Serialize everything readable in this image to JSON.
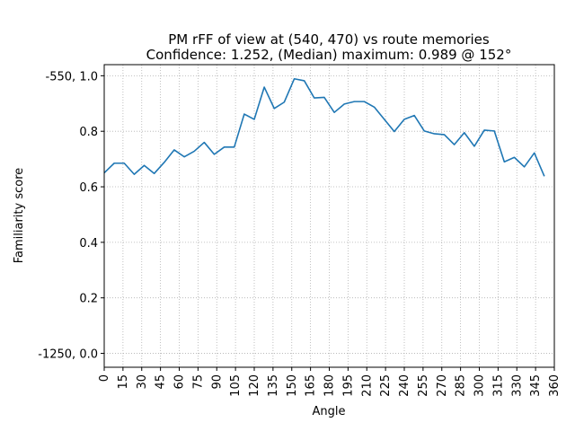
{
  "chart_data": {
    "type": "line",
    "title": "PM rFF of view at (540, 470) vs route memories",
    "subtitle": "Confidence: 1.252, (Median) maximum: 0.989 @ 152°",
    "xlabel": "Angle",
    "ylabel": "Familiarity score",
    "xlim": [
      0,
      360
    ],
    "ylim": [
      -0.05,
      1.04
    ],
    "grid": true,
    "x_ticks": [
      0,
      15,
      30,
      45,
      60,
      75,
      90,
      105,
      120,
      135,
      150,
      165,
      180,
      195,
      210,
      225,
      240,
      255,
      270,
      285,
      300,
      315,
      330,
      345,
      360
    ],
    "y_ticks": [
      {
        "value": 0.0,
        "label": "-1250, 0.0"
      },
      {
        "value": 0.2,
        "label": "0.2"
      },
      {
        "value": 0.4,
        "label": "0.4"
      },
      {
        "value": 0.6,
        "label": "0.6"
      },
      {
        "value": 0.8,
        "label": "0.8"
      },
      {
        "value": 1.0,
        "label": "-550, 1.0"
      }
    ],
    "line_color": "#1f77b4",
    "series": [
      {
        "x": [
          0,
          8,
          16,
          24,
          32,
          40,
          48,
          56,
          64,
          72,
          80,
          88,
          96,
          104,
          112,
          120,
          128,
          136,
          144,
          152,
          160,
          168,
          176,
          184,
          192,
          200,
          208,
          216,
          224,
          232,
          240,
          248,
          256,
          264,
          272,
          280,
          288,
          296,
          304,
          312,
          320,
          328,
          336,
          344,
          352
        ],
        "y": [
          0.65,
          0.685,
          0.685,
          0.645,
          0.677,
          0.648,
          0.688,
          0.733,
          0.708,
          0.728,
          0.76,
          0.717,
          0.743,
          0.743,
          0.862,
          0.843,
          0.959,
          0.882,
          0.905,
          0.989,
          0.982,
          0.92,
          0.922,
          0.868,
          0.898,
          0.907,
          0.907,
          0.887,
          0.843,
          0.799,
          0.843,
          0.857,
          0.801,
          0.791,
          0.788,
          0.752,
          0.795,
          0.746,
          0.804,
          0.801,
          0.69,
          0.706,
          0.672,
          0.722,
          0.638
        ]
      }
    ]
  }
}
